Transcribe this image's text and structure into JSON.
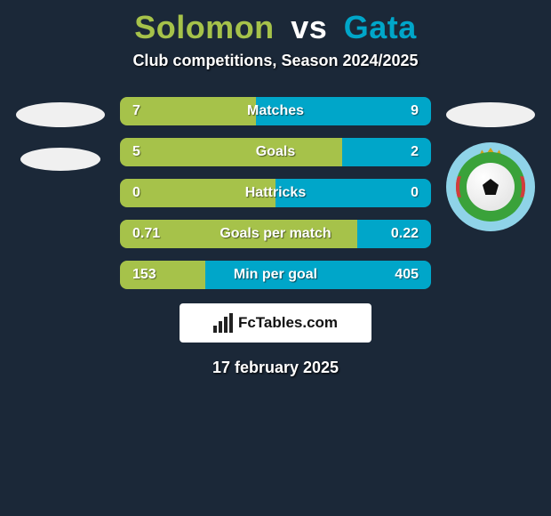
{
  "title": {
    "left_name": "Solomon",
    "separator": "vs",
    "right_name": "Gata",
    "left_color": "#a6c24a",
    "right_color": "#00a6c9"
  },
  "subtitle": "Club competitions, Season 2024/2025",
  "colors": {
    "left": "#a6c24a",
    "right": "#00a6c9",
    "background": "#1b2838"
  },
  "badges": {
    "right_circle_bg": "#8fd3e8",
    "right_inner_bg": "#3aa23a",
    "right_accent": "#d23c3c"
  },
  "stats": [
    {
      "label": "Matches",
      "left_value": "7",
      "right_value": "9",
      "left_pct": 43.8
    },
    {
      "label": "Goals",
      "left_value": "5",
      "right_value": "2",
      "left_pct": 71.4
    },
    {
      "label": "Hattricks",
      "left_value": "0",
      "right_value": "0",
      "left_pct": 50.0
    },
    {
      "label": "Goals per match",
      "left_value": "0.71",
      "right_value": "0.22",
      "left_pct": 76.3
    },
    {
      "label": "Min per goal",
      "left_value": "153",
      "right_value": "405",
      "left_pct": 27.4
    }
  ],
  "brand": "FcTables.com",
  "date": "17 february 2025"
}
